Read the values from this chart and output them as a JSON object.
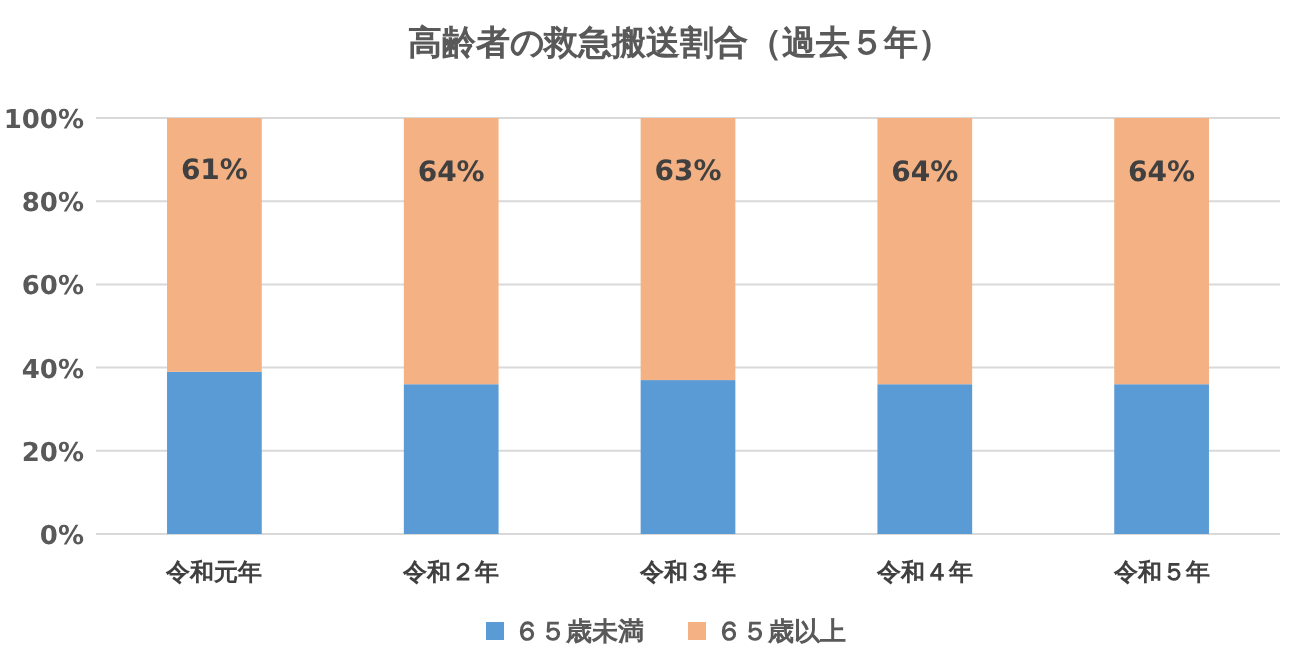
{
  "chart_data": {
    "type": "bar",
    "title": "高齢者の救急搬送割合（過去５年）",
    "stacked": true,
    "categories": [
      "令和元年",
      "令和２年",
      "令和３年",
      "令和４年",
      "令和５年"
    ],
    "series": [
      {
        "name": "６５歳未満",
        "color": "#5b9bd5",
        "values": [
          39,
          36,
          37,
          36,
          36
        ]
      },
      {
        "name": "６５歳以上",
        "color": "#f4b183",
        "values": [
          61,
          64,
          63,
          64,
          64
        ],
        "value_labels": [
          "61%",
          "64%",
          "63%",
          "64%",
          "64%"
        ]
      }
    ],
    "ylim": [
      0,
      100
    ],
    "yticks": [
      {
        "value": 0,
        "label": "0%"
      },
      {
        "value": 20,
        "label": "20%"
      },
      {
        "value": 40,
        "label": "40%"
      },
      {
        "value": 60,
        "label": "60%"
      },
      {
        "value": 80,
        "label": "80%"
      },
      {
        "value": 100,
        "label": "100%"
      }
    ],
    "grid": "y",
    "legend": "bottom"
  }
}
